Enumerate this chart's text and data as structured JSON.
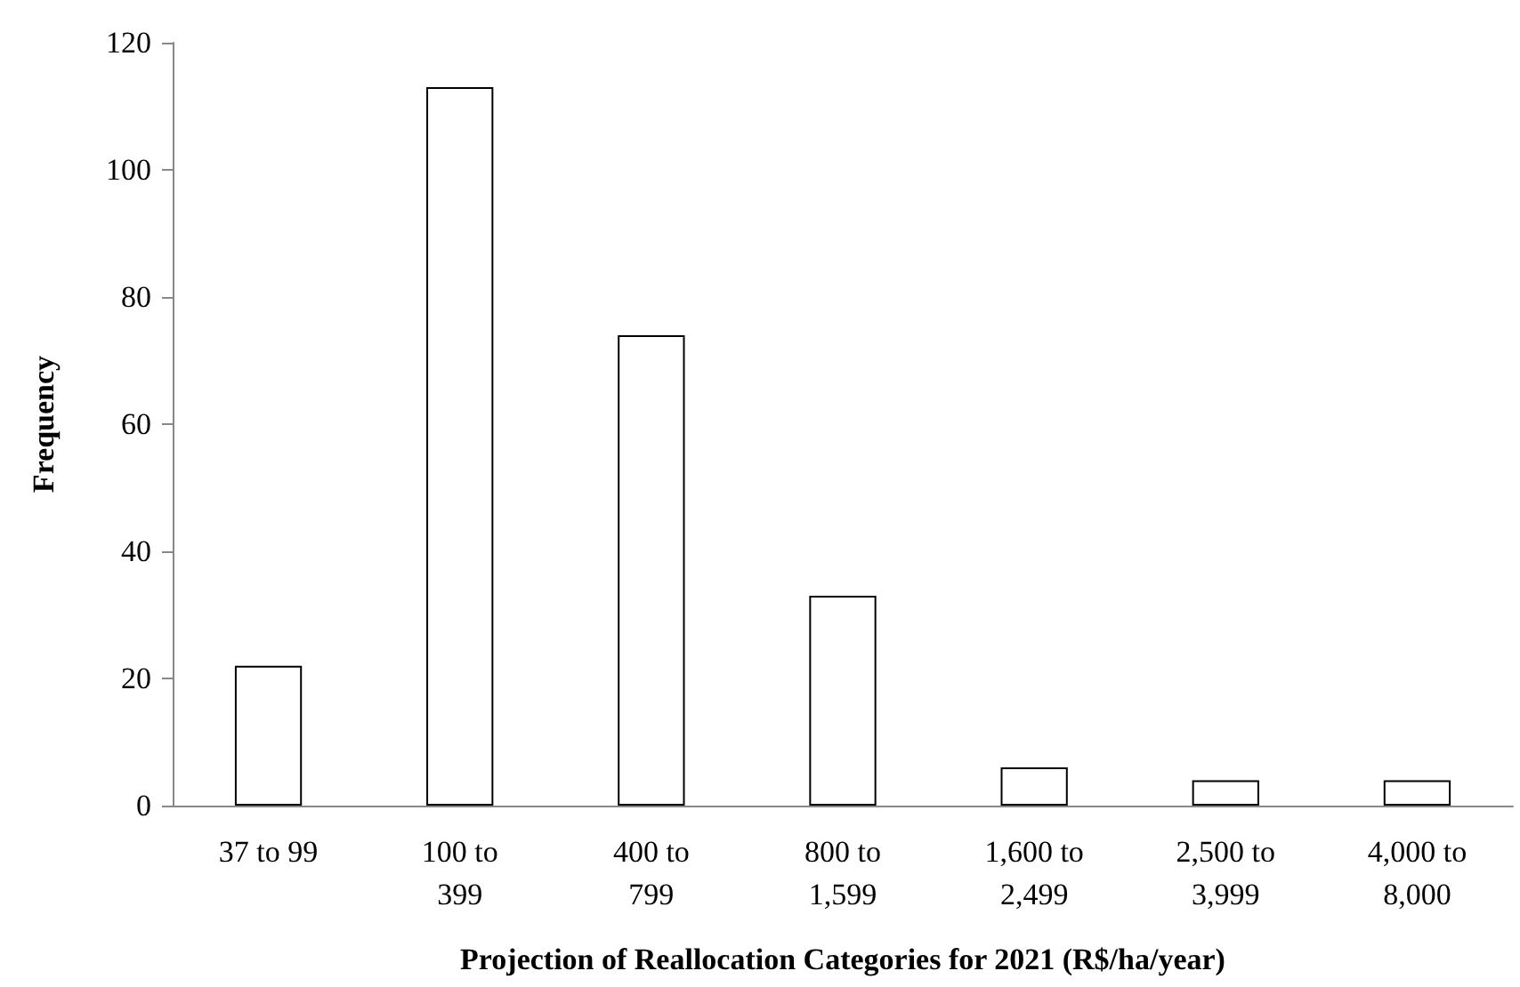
{
  "chart_data": {
    "type": "bar",
    "xlabel": "Projection of Reallocation Categories for 2021 (R$/ha/year)",
    "ylabel": "Frequency",
    "categories": [
      "37 to 99",
      "100 to\n399",
      "400 to\n799",
      "800 to\n1,599",
      "1,600 to\n2,499",
      "2,500 to\n3,999",
      "4,000 to\n8,000"
    ],
    "values": [
      22,
      113,
      74,
      33,
      6,
      4,
      4
    ],
    "color": "#ffffff",
    "ylim": [
      0,
      120
    ],
    "yticks": [
      0,
      20,
      40,
      60,
      80,
      100,
      120
    ]
  }
}
